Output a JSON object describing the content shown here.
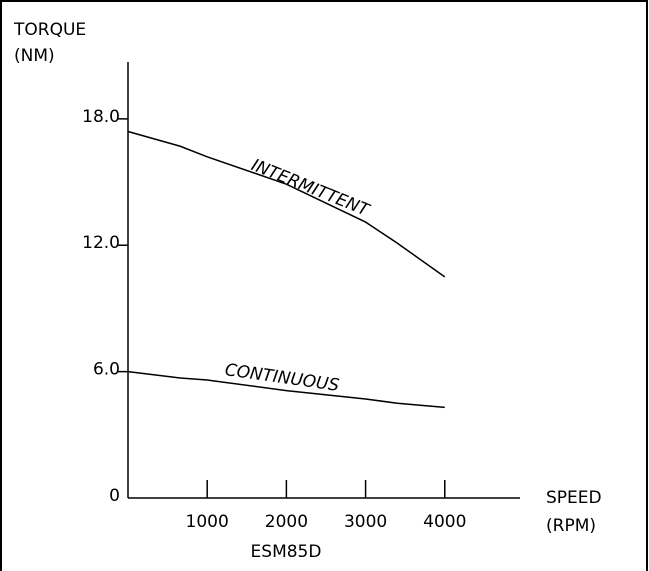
{
  "chart_data": {
    "type": "line",
    "title": "ESM85D",
    "ylabel": [
      "TORQUE",
      "(NM)"
    ],
    "xlabel": [
      "SPEED",
      "(RPM)"
    ],
    "x": [
      0,
      660,
      1000,
      2000,
      3000,
      3400,
      4000
    ],
    "series": [
      {
        "name": "INTERMITTENT",
        "color": "#000000",
        "values": [
          17.4,
          16.7,
          16.2,
          14.9,
          13.1,
          12.1,
          10.5
        ]
      },
      {
        "name": "CONTINUOUS",
        "color": "#000000",
        "values": [
          6.0,
          5.7,
          5.6,
          5.1,
          4.7,
          4.5,
          4.3
        ]
      }
    ],
    "label_color": "#2233cc",
    "title_color": "#e02020",
    "xlim": [
      0,
      4950
    ],
    "ylim": [
      0,
      20.7
    ],
    "xticks": [
      1000,
      2000,
      3000,
      4000
    ],
    "yticks": [
      0,
      {
        "value": 6,
        "label": "6.0"
      },
      {
        "value": 12,
        "label": "12.0"
      },
      {
        "value": 18,
        "label": "18.0"
      }
    ]
  }
}
